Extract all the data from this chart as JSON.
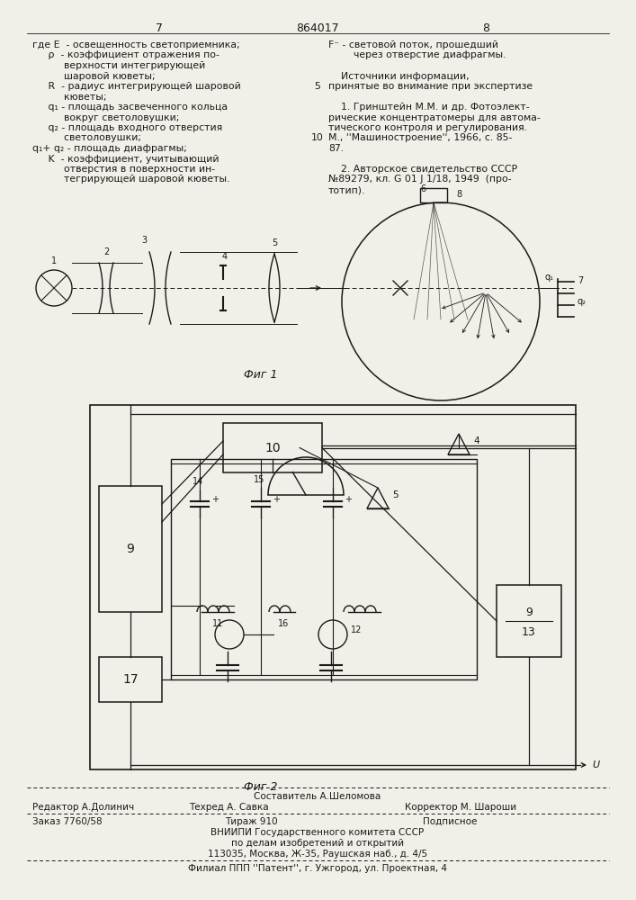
{
  "page_number_left": "7",
  "patent_number": "864017",
  "page_number_right": "8",
  "bg_color": "#f0efe8",
  "text_color": "#1a1a1a",
  "fig1_caption": "Фиг 1",
  "fig2_caption": "Фиг 2",
  "footer_line1": "Составитель А.Шеломова",
  "footer_line2a": "Редактор А.Долинич",
  "footer_line2b": "Техред А. Савка",
  "footer_line2c": "Корректор М. Шароши",
  "footer_line3a": "Заказ 7760/58",
  "footer_line3b": "Тираж 910",
  "footer_line3c": "Подписное",
  "footer_line4": "ВНИИПИ Государственного комитета СССР",
  "footer_line5": "по делам изобретений и открытий",
  "footer_line6": "113035, Москва, Ж-35, Раушская наб., д. 4/5",
  "footer_line7": "Филиал ППП ''Патент'', г. Ужгород, ул. Проектная, 4"
}
